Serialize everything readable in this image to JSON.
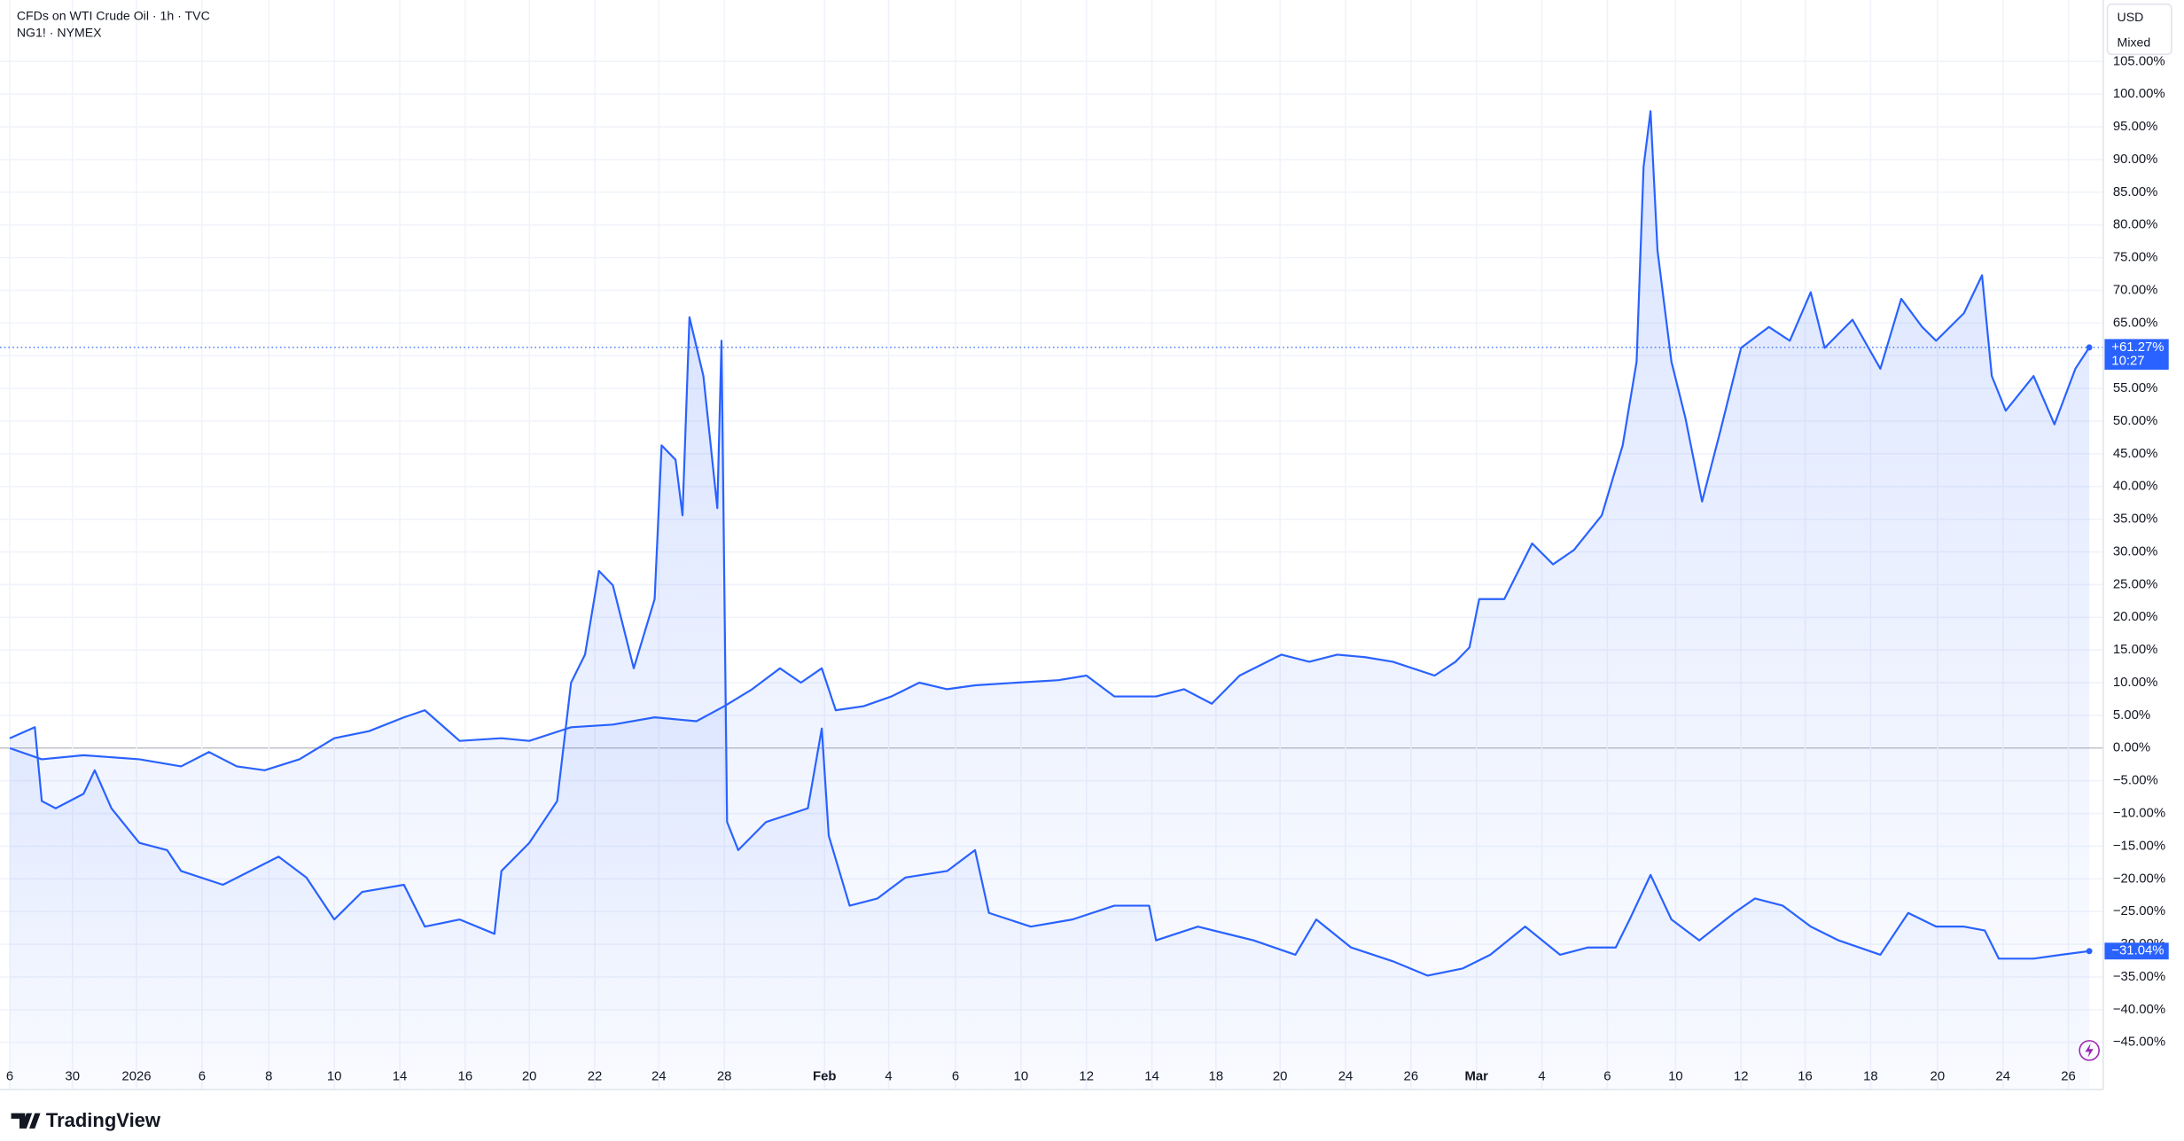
{
  "chart_data": {
    "type": "line",
    "currency": "USD",
    "scale_mode": "Mixed",
    "countdown": "10:27",
    "brand": "TradingView",
    "grid": true,
    "legend": "top-left",
    "xlim": [
      0,
      1493
    ],
    "ylim": [
      -52.2,
      114.4
    ],
    "xticks": [
      {
        "value": 0,
        "label": "6"
      },
      {
        "value": 45,
        "label": "30"
      },
      {
        "value": 91,
        "label": "2026"
      },
      {
        "value": 138,
        "label": "6"
      },
      {
        "value": 186,
        "label": "8"
      },
      {
        "value": 233,
        "label": "10"
      },
      {
        "value": 280,
        "label": "14"
      },
      {
        "value": 327,
        "label": "16"
      },
      {
        "value": 373,
        "label": "20"
      },
      {
        "value": 420,
        "label": "22"
      },
      {
        "value": 466,
        "label": "24"
      },
      {
        "value": 513,
        "label": "28"
      },
      {
        "value": 585,
        "label": "Feb"
      },
      {
        "value": 631,
        "label": "4"
      },
      {
        "value": 679,
        "label": "6"
      },
      {
        "value": 726,
        "label": "10"
      },
      {
        "value": 773,
        "label": "12"
      },
      {
        "value": 820,
        "label": "14"
      },
      {
        "value": 866,
        "label": "18"
      },
      {
        "value": 912,
        "label": "20"
      },
      {
        "value": 959,
        "label": "24"
      },
      {
        "value": 1006,
        "label": "26"
      },
      {
        "value": 1053,
        "label": "Mar"
      },
      {
        "value": 1100,
        "label": "4"
      },
      {
        "value": 1147,
        "label": "6"
      },
      {
        "value": 1196,
        "label": "10"
      },
      {
        "value": 1243,
        "label": "12"
      },
      {
        "value": 1289,
        "label": "16"
      },
      {
        "value": 1336,
        "label": "18"
      },
      {
        "value": 1384,
        "label": "20"
      },
      {
        "value": 1431,
        "label": "24"
      },
      {
        "value": 1478,
        "label": "26"
      }
    ],
    "yticks": [
      {
        "value": -45,
        "label": "−45.00%"
      },
      {
        "value": -40,
        "label": "−40.00%"
      },
      {
        "value": -35,
        "label": "−35.00%"
      },
      {
        "value": -30,
        "label": "−30.00%"
      },
      {
        "value": -25,
        "label": "−25.00%"
      },
      {
        "value": -20,
        "label": "−20.00%"
      },
      {
        "value": -15,
        "label": "−15.00%"
      },
      {
        "value": -10,
        "label": "−10.00%"
      },
      {
        "value": -5,
        "label": "−5.00%"
      },
      {
        "value": 0,
        "label": "0.00%"
      },
      {
        "value": 5,
        "label": "5.00%"
      },
      {
        "value": 10,
        "label": "10.00%"
      },
      {
        "value": 15,
        "label": "15.00%"
      },
      {
        "value": 20,
        "label": "20.00%"
      },
      {
        "value": 25,
        "label": "25.00%"
      },
      {
        "value": 30,
        "label": "30.00%"
      },
      {
        "value": 35,
        "label": "35.00%"
      },
      {
        "value": 40,
        "label": "40.00%"
      },
      {
        "value": 45,
        "label": "45.00%"
      },
      {
        "value": 50,
        "label": "50.00%"
      },
      {
        "value": 55,
        "label": "55.00%"
      },
      {
        "value": 60,
        "label": "60.00%"
      },
      {
        "value": 65,
        "label": "65.00%"
      },
      {
        "value": 70,
        "label": "70.00%"
      },
      {
        "value": 75,
        "label": "75.00%"
      },
      {
        "value": 80,
        "label": "80.00%"
      },
      {
        "value": 85,
        "label": "85.00%"
      },
      {
        "value": 90,
        "label": "90.00%"
      },
      {
        "value": 95,
        "label": "95.00%"
      },
      {
        "value": 100,
        "label": "100.00%"
      },
      {
        "value": 105,
        "label": "105.00%"
      }
    ],
    "series": [
      {
        "name": "CFDs on WTI Crude Oil · 1h · TVC",
        "color": "#2962ff",
        "x": [
          0,
          23,
          53,
          93,
          123,
          143,
          163,
          183,
          208,
          233,
          258,
          283,
          298,
          323,
          353,
          373,
          403,
          433,
          463,
          493,
          513,
          533,
          553,
          568,
          583,
          593,
          613,
          633,
          653,
          673,
          693,
          723,
          753,
          773,
          793,
          823,
          843,
          863,
          883,
          913,
          933,
          953,
          973,
          993,
          1023,
          1038,
          1048,
          1055,
          1073,
          1093,
          1108,
          1123,
          1143,
          1158,
          1168,
          1173,
          1178,
          1183,
          1193,
          1203,
          1215,
          1228,
          1243,
          1263,
          1278,
          1293,
          1303,
          1323,
          1343,
          1358,
          1373,
          1383,
          1403,
          1416,
          1423,
          1433,
          1453,
          1468,
          1483,
          1493
        ],
        "values": [
          0,
          -1.7,
          -1.1,
          -1.7,
          -2.8,
          -0.6,
          -2.8,
          -3.4,
          -1.7,
          1.5,
          2.6,
          4.7,
          5.8,
          1.1,
          1.5,
          1.1,
          3.2,
          3.6,
          4.7,
          4.1,
          6.4,
          9.0,
          12.2,
          10.0,
          12.2,
          5.8,
          6.4,
          7.9,
          10.0,
          9.0,
          9.6,
          10.0,
          10.4,
          11.1,
          7.9,
          7.9,
          9.0,
          6.8,
          11.1,
          14.3,
          13.2,
          14.3,
          13.9,
          13.2,
          11.1,
          13.2,
          15.4,
          22.8,
          22.8,
          31.3,
          28.1,
          30.3,
          35.6,
          46.3,
          59.1,
          88.9,
          97.4,
          76.1,
          59.1,
          50.5,
          37.7,
          48.4,
          61.2,
          64.4,
          62.3,
          69.7,
          61.2,
          65.5,
          58.0,
          68.7,
          64.4,
          62.3,
          66.5,
          72.3,
          56.9,
          51.6,
          56.9,
          49.5,
          58.0,
          61.27
        ],
        "value_labels": [
          null,
          null,
          null,
          null,
          null,
          null,
          null,
          null,
          null,
          null,
          null,
          null,
          null,
          null,
          null,
          null,
          null,
          null,
          null,
          null,
          null,
          null,
          null,
          null,
          null,
          null,
          null,
          null,
          null,
          null,
          null,
          null,
          null,
          null,
          null,
          null,
          null,
          null,
          null,
          null,
          null,
          null,
          null,
          null,
          null,
          null,
          null,
          null,
          null,
          null,
          null,
          null,
          null,
          null,
          null,
          null,
          null,
          null,
          null,
          null,
          null,
          null,
          null,
          null,
          null,
          null,
          null,
          null,
          null,
          null,
          null,
          null,
          null,
          null,
          null,
          null,
          null,
          null,
          null,
          "+61.27%"
        ]
      },
      {
        "name": "NG1! · NYMEX",
        "color": "#2962ff",
        "x": [
          0,
          18,
          23,
          33,
          53,
          61,
          73,
          93,
          113,
          123,
          153,
          193,
          213,
          233,
          253,
          283,
          298,
          323,
          348,
          353,
          373,
          393,
          403,
          413,
          423,
          433,
          448,
          463,
          468,
          478,
          483,
          488,
          498,
          508,
          511,
          515,
          523,
          543,
          573,
          583,
          588,
          603,
          623,
          643,
          673,
          693,
          703,
          733,
          763,
          793,
          818,
          823,
          853,
          893,
          923,
          938,
          963,
          993,
          1018,
          1043,
          1063,
          1088,
          1113,
          1133,
          1153,
          1163,
          1178,
          1193,
          1213,
          1238,
          1253,
          1273,
          1293,
          1313,
          1343,
          1363,
          1383,
          1403,
          1418,
          1428,
          1453,
          1473,
          1493
        ],
        "values": [
          1.5,
          3.2,
          -8.1,
          -9.2,
          -7.0,
          -3.4,
          -9.2,
          -14.5,
          -15.6,
          -18.8,
          -20.9,
          -16.6,
          -19.8,
          -26.2,
          -22.0,
          -20.9,
          -27.3,
          -26.2,
          -28.4,
          -18.8,
          -14.5,
          -8.1,
          10.0,
          14.3,
          27.1,
          24.9,
          12.2,
          22.8,
          46.3,
          44.1,
          35.6,
          65.9,
          56.9,
          36.7,
          62.3,
          -11.3,
          -15.6,
          -11.3,
          -9.2,
          3.0,
          -13.4,
          -24.1,
          -23.0,
          -19.8,
          -18.8,
          -15.6,
          -25.2,
          -27.3,
          -26.2,
          -24.1,
          -24.1,
          -29.4,
          -27.3,
          -29.4,
          -31.6,
          -26.2,
          -30.5,
          -32.6,
          -34.8,
          -33.7,
          -31.6,
          -27.3,
          -31.6,
          -30.5,
          -30.5,
          -26.2,
          -19.4,
          -26.2,
          -29.4,
          -25.2,
          -23.0,
          -24.1,
          -27.3,
          -29.4,
          -31.6,
          -25.2,
          -27.3,
          -27.3,
          -27.9,
          -32.2,
          -32.2,
          -31.6,
          -31.04
        ],
        "value_labels": [
          null,
          null,
          null,
          null,
          null,
          null,
          null,
          null,
          null,
          null,
          null,
          null,
          null,
          null,
          null,
          null,
          null,
          null,
          null,
          null,
          null,
          null,
          null,
          null,
          null,
          null,
          null,
          null,
          null,
          null,
          null,
          null,
          null,
          null,
          null,
          null,
          null,
          null,
          null,
          null,
          null,
          null,
          null,
          null,
          null,
          null,
          null,
          null,
          null,
          null,
          null,
          null,
          null,
          null,
          null,
          null,
          null,
          null,
          null,
          null,
          null,
          null,
          null,
          null,
          null,
          null,
          null,
          null,
          null,
          null,
          null,
          null,
          null,
          null,
          null,
          null,
          null,
          null,
          null,
          null,
          null,
          null,
          "−31.04%"
        ]
      }
    ]
  }
}
